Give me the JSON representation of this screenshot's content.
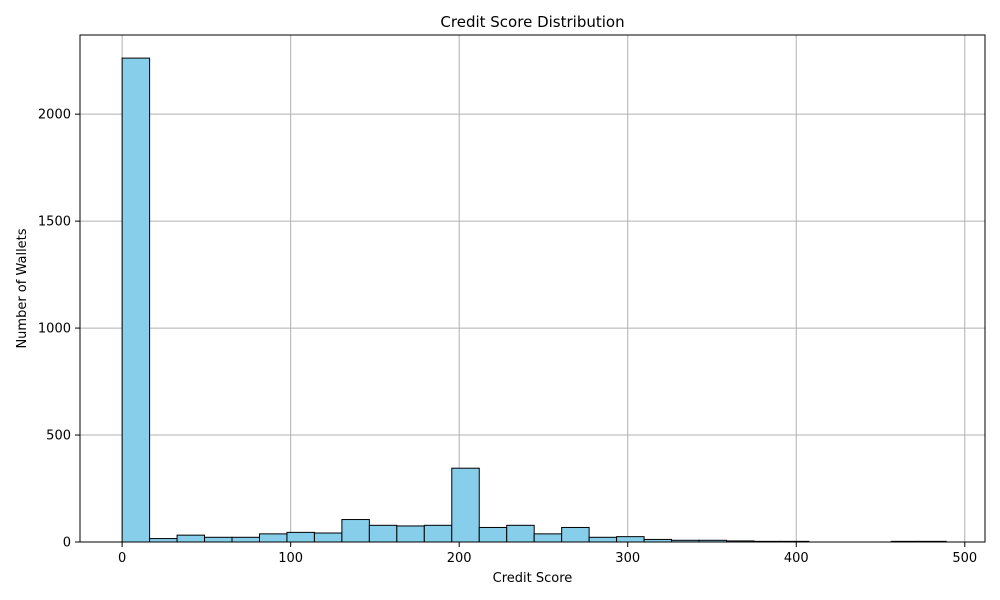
{
  "chart_data": {
    "type": "bar",
    "title": "Credit Score Distribution",
    "xlabel": "Credit Score",
    "ylabel": "Number of Wallets",
    "xlim": [
      -25,
      512
    ],
    "ylim": [
      0,
      2370
    ],
    "xticks": [
      0,
      100,
      200,
      300,
      400,
      500
    ],
    "yticks": [
      0,
      500,
      1000,
      1500,
      2000
    ],
    "grid": true,
    "bar_color": "#87ceeb",
    "edge_color": "#000000",
    "bin_edges": [
      0,
      16.3,
      32.6,
      48.9,
      65.2,
      81.5,
      97.8,
      114.1,
      130.4,
      146.7,
      163.0,
      179.3,
      195.6,
      211.9,
      228.2,
      244.5,
      260.8,
      277.1,
      293.4,
      309.7,
      326.0,
      342.3,
      358.6,
      374.9,
      391.2,
      407.5,
      423.8,
      440.1,
      456.4,
      472.7,
      489.0
    ],
    "values": [
      2262,
      16,
      32,
      22,
      22,
      38,
      45,
      42,
      105,
      78,
      75,
      78,
      345,
      68,
      78,
      38,
      68,
      22,
      25,
      12,
      8,
      8,
      5,
      3,
      3,
      0,
      0,
      0,
      3,
      3
    ]
  }
}
